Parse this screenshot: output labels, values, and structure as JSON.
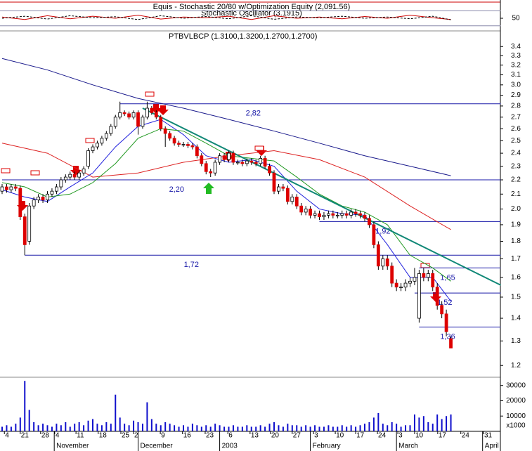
{
  "chart_data": [
    {
      "type": "line",
      "title": "Equis - Stochastic 20/80 w/Optimization Equity (2,091.56)",
      "subtitle": "Stochastic Oscillator (3.1915)",
      "xlim": [
        0,
        110
      ],
      "ylim": [
        0,
        100
      ],
      "yticks": [
        50
      ],
      "levels": [
        20,
        80
      ],
      "series": [
        {
          "color": "#cc0000",
          "style": "solid",
          "x": [
            0,
            5,
            10,
            15,
            20,
            25,
            30,
            35,
            40,
            45,
            50,
            55,
            60,
            65,
            70,
            75,
            80,
            85,
            90,
            95,
            99
          ],
          "values": [
            55,
            45,
            60,
            48,
            58,
            50,
            62,
            47,
            55,
            52,
            58,
            45,
            60,
            50,
            55,
            48,
            57,
            50,
            62,
            52,
            45
          ]
        },
        {
          "color": "#000000",
          "style": "dashed",
          "x": [
            0,
            5,
            10,
            15,
            20,
            25,
            30,
            35,
            40,
            45,
            50,
            55,
            60,
            65,
            70,
            75,
            80,
            85,
            90,
            95,
            99
          ],
          "values": [
            50,
            58,
            47,
            60,
            52,
            56,
            45,
            60,
            50,
            57,
            48,
            60,
            46,
            55,
            52,
            58,
            50,
            55,
            48,
            58,
            44
          ]
        }
      ]
    },
    {
      "type": "candlestick",
      "title": "PTBVLBCP (1.3100,1.3200,1.2700,1.2700)",
      "xlim": [
        0,
        110
      ],
      "ylim": [
        1.16,
        3.57
      ],
      "log": true,
      "yticks": [
        1.2,
        1.3,
        1.4,
        1.5,
        1.6,
        1.7,
        1.8,
        1.9,
        {
          "value": 2,
          "label": "2.0"
        },
        2.1,
        2.2,
        2.3,
        2.4,
        2.5,
        2.6,
        2.7,
        2.8,
        2.9,
        {
          "value": 3,
          "label": "3.0"
        },
        3.1,
        3.2,
        3.3,
        3.4
      ],
      "up_color": "#ffffff",
      "down_color": "#dd0000",
      "open": [
        2.12,
        2.15,
        2.13,
        2.15,
        2.14,
        1.95,
        1.8,
        2.02,
        2.06,
        2.08,
        2.06,
        2.1,
        2.12,
        2.15,
        2.2,
        2.22,
        2.24,
        2.22,
        2.25,
        2.3,
        2.42,
        2.45,
        2.48,
        2.52,
        2.56,
        2.62,
        2.7,
        2.74,
        2.73,
        2.7,
        2.74,
        2.62,
        2.7,
        2.78,
        2.74,
        2.7,
        2.6,
        2.56,
        2.52,
        2.48,
        2.47,
        2.47,
        2.46,
        2.45,
        2.38,
        2.32,
        2.26,
        2.25,
        2.33,
        2.38,
        2.35,
        2.4,
        2.33,
        2.33,
        2.32,
        2.34,
        2.33,
        2.32,
        2.36,
        2.3,
        2.25,
        2.12,
        2.15,
        2.14,
        2.05,
        2.08,
        2.02,
        1.98,
        2.0,
        1.96,
        1.97,
        1.95,
        1.96,
        1.97,
        1.96,
        1.96,
        1.97,
        1.96,
        1.98,
        1.97,
        1.96,
        1.94,
        1.9,
        1.78,
        1.66,
        1.7,
        1.66,
        1.57,
        1.55,
        1.55,
        1.57,
        1.58,
        1.4,
        1.62,
        1.6,
        1.62,
        1.55,
        1.46,
        1.42,
        1.31
      ],
      "high": [
        2.17,
        2.17,
        2.17,
        2.17,
        2.16,
        1.97,
        2.04,
        2.08,
        2.1,
        2.1,
        2.12,
        2.14,
        2.17,
        2.22,
        2.24,
        2.26,
        2.26,
        2.27,
        2.3,
        2.44,
        2.47,
        2.5,
        2.54,
        2.58,
        2.64,
        2.72,
        2.84,
        2.76,
        2.75,
        2.76,
        2.76,
        2.72,
        2.84,
        2.8,
        2.76,
        2.72,
        2.62,
        2.58,
        2.54,
        2.5,
        2.49,
        2.49,
        2.48,
        2.47,
        2.4,
        2.34,
        2.28,
        2.35,
        2.4,
        2.4,
        2.42,
        2.42,
        2.35,
        2.35,
        2.36,
        2.36,
        2.35,
        2.38,
        2.38,
        2.32,
        2.27,
        2.17,
        2.17,
        2.16,
        2.1,
        2.1,
        2.04,
        2.02,
        2.02,
        1.99,
        1.99,
        1.98,
        1.99,
        1.99,
        1.98,
        1.99,
        1.99,
        2.0,
        2.0,
        1.99,
        1.98,
        1.96,
        1.92,
        1.8,
        1.72,
        1.72,
        1.68,
        1.59,
        1.57,
        1.59,
        1.6,
        1.65,
        1.64,
        1.65,
        1.64,
        1.64,
        1.57,
        1.48,
        1.44,
        1.32
      ],
      "low": [
        2.1,
        2.11,
        2.11,
        2.12,
        1.93,
        1.72,
        1.78,
        2.0,
        2.04,
        2.04,
        2.04,
        2.08,
        2.1,
        2.13,
        2.18,
        2.2,
        2.2,
        2.2,
        2.23,
        2.28,
        2.4,
        2.43,
        2.46,
        2.5,
        2.54,
        2.6,
        2.68,
        2.71,
        2.68,
        2.68,
        2.55,
        2.6,
        2.68,
        2.72,
        2.68,
        2.58,
        2.45,
        2.5,
        2.46,
        2.45,
        2.45,
        2.44,
        2.43,
        2.36,
        2.3,
        2.24,
        2.22,
        2.23,
        2.31,
        2.33,
        2.33,
        2.31,
        2.31,
        2.3,
        2.3,
        2.31,
        2.3,
        2.3,
        2.28,
        2.23,
        2.1,
        2.1,
        2.12,
        2.03,
        2.03,
        2.0,
        1.96,
        1.96,
        1.94,
        1.94,
        1.93,
        1.93,
        1.94,
        1.94,
        1.94,
        1.94,
        1.94,
        1.94,
        1.95,
        1.94,
        1.92,
        1.88,
        1.76,
        1.64,
        1.64,
        1.64,
        1.55,
        1.53,
        1.53,
        1.53,
        1.55,
        1.56,
        1.38,
        1.58,
        1.58,
        1.53,
        1.44,
        1.4,
        1.32,
        1.27
      ],
      "close": [
        2.15,
        2.13,
        2.15,
        2.14,
        1.95,
        1.78,
        2.02,
        2.06,
        2.08,
        2.06,
        2.1,
        2.12,
        2.15,
        2.2,
        2.22,
        2.24,
        2.22,
        2.25,
        2.28,
        2.42,
        2.45,
        2.48,
        2.52,
        2.56,
        2.62,
        2.7,
        2.74,
        2.73,
        2.7,
        2.74,
        2.62,
        2.7,
        2.78,
        2.74,
        2.7,
        2.6,
        2.56,
        2.52,
        2.48,
        2.47,
        2.47,
        2.46,
        2.45,
        2.38,
        2.32,
        2.26,
        2.25,
        2.33,
        2.38,
        2.35,
        2.4,
        2.33,
        2.33,
        2.32,
        2.34,
        2.33,
        2.32,
        2.36,
        2.3,
        2.25,
        2.12,
        2.15,
        2.14,
        2.05,
        2.08,
        2.02,
        1.98,
        2.0,
        1.96,
        1.97,
        1.95,
        1.96,
        1.97,
        1.96,
        1.96,
        1.97,
        1.96,
        1.98,
        1.97,
        1.96,
        1.94,
        1.9,
        1.78,
        1.66,
        1.7,
        1.66,
        1.57,
        1.55,
        1.55,
        1.57,
        1.58,
        1.6,
        1.62,
        1.6,
        1.62,
        1.55,
        1.46,
        1.42,
        1.34,
        1.27
      ],
      "lines": [
        {
          "color": "#1a1a8c",
          "width": 1,
          "x": [
            0,
            10,
            20,
            30,
            40,
            50,
            60,
            70,
            80,
            90,
            99
          ],
          "values": [
            3.27,
            3.15,
            3.0,
            2.87,
            2.78,
            2.68,
            2.58,
            2.48,
            2.38,
            2.3,
            2.23
          ]
        },
        {
          "color": "#dd2222",
          "width": 1,
          "x": [
            0,
            10,
            20,
            30,
            40,
            50,
            60,
            70,
            80,
            90,
            99
          ],
          "values": [
            2.48,
            2.4,
            2.22,
            2.25,
            2.33,
            2.38,
            2.42,
            2.35,
            2.22,
            2.02,
            1.87
          ]
        },
        {
          "color": "#2222dd",
          "width": 1,
          "x": [
            0,
            5,
            10,
            15,
            20,
            25,
            30,
            35,
            40,
            45,
            50,
            55,
            60,
            65,
            70,
            75,
            80,
            85,
            90,
            95,
            99
          ],
          "values": [
            2.13,
            2.08,
            2.05,
            2.15,
            2.25,
            2.45,
            2.62,
            2.68,
            2.55,
            2.38,
            2.33,
            2.35,
            2.3,
            2.12,
            2.0,
            1.97,
            1.96,
            1.78,
            1.6,
            1.6,
            1.48
          ]
        },
        {
          "color": "#229922",
          "width": 1,
          "x": [
            0,
            5,
            10,
            15,
            20,
            25,
            30,
            35,
            40,
            45,
            50,
            55,
            60,
            65,
            70,
            75,
            80,
            85,
            90,
            95,
            99
          ],
          "values": [
            2.18,
            2.15,
            2.08,
            2.1,
            2.18,
            2.32,
            2.52,
            2.6,
            2.58,
            2.48,
            2.38,
            2.36,
            2.34,
            2.22,
            2.1,
            2.02,
            1.98,
            1.9,
            1.72,
            1.65,
            1.58
          ]
        },
        {
          "color": "#118877",
          "width": 2,
          "x": [
            31,
            110
          ],
          "values": [
            2.78,
            1.56
          ]
        }
      ],
      "levels": [
        {
          "value": 2.82,
          "label": "2,82",
          "start": 26
        },
        {
          "value": 2.2,
          "label": "2,20",
          "start": 0
        },
        {
          "value": 1.92,
          "label": "1,92",
          "start": 70
        },
        {
          "value": 1.72,
          "label": "1,72",
          "start": 5
        },
        {
          "value": 1.65,
          "label": "1,65",
          "start": 92
        },
        {
          "value": 1.52,
          "label": "1,52",
          "start": 91
        },
        {
          "value": 1.36,
          "label": "1,36",
          "start": 92
        }
      ]
    },
    {
      "type": "bar",
      "xlim": [
        0,
        110
      ],
      "ylim": [
        0,
        34000
      ],
      "yticks": [
        10000,
        20000,
        30000
      ],
      "unit": "x1000",
      "color": "#1010cc",
      "values": [
        3000,
        4000,
        3000,
        5000,
        9000,
        33000,
        14000,
        6000,
        4000,
        5000,
        4000,
        3000,
        5000,
        4000,
        6000,
        3000,
        5000,
        6000,
        4000,
        7000,
        8000,
        5000,
        4000,
        6000,
        5000,
        24000,
        9000,
        5000,
        4000,
        7000,
        6000,
        5000,
        19000,
        8000,
        5000,
        4000,
        6000,
        5000,
        4000,
        3000,
        4000,
        3000,
        5000,
        4000,
        3000,
        4000,
        3000,
        5000,
        4000,
        3000,
        3000,
        4000,
        3000,
        3000,
        4000,
        3000,
        3000,
        4000,
        3000,
        5000,
        6000,
        4000,
        3000,
        5000,
        4000,
        4000,
        3000,
        4000,
        3000,
        4000,
        3000,
        3000,
        4000,
        3000,
        3000,
        4000,
        3000,
        4000,
        3000,
        4000,
        5000,
        6000,
        9000,
        12000,
        5000,
        4000,
        6000,
        5000,
        3000,
        4000,
        4000,
        11000,
        9000,
        10000,
        6000,
        5000,
        11000,
        8000,
        10000,
        11000
      ],
      "xticks": [
        {
          "value": 0.5,
          "label": "4"
        },
        {
          "value": 4,
          "label": "21"
        },
        {
          "value": 8.5,
          "label": "28"
        },
        {
          "value": 11.6,
          "label": "4"
        },
        {
          "value": 16.3,
          "label": "11"
        },
        {
          "value": 21.2,
          "label": "18"
        },
        {
          "value": 26.2,
          "label": "25"
        },
        {
          "value": 29,
          "label": "2"
        },
        {
          "value": 34.9,
          "label": "9"
        },
        {
          "value": 39.8,
          "label": "16"
        },
        {
          "value": 44.8,
          "label": "23"
        },
        {
          "value": 49.8,
          "label": "6"
        },
        {
          "value": 54.7,
          "label": "13"
        },
        {
          "value": 59.2,
          "label": "20"
        },
        {
          "value": 64,
          "label": "27"
        },
        {
          "value": 68.7,
          "label": "3"
        },
        {
          "value": 73.5,
          "label": "10"
        },
        {
          "value": 78,
          "label": "17"
        },
        {
          "value": 82.8,
          "label": "24"
        },
        {
          "value": 87.3,
          "label": "3"
        },
        {
          "value": 91,
          "label": "10"
        },
        {
          "value": 96.1,
          "label": "17"
        },
        {
          "value": 101.2,
          "label": "24"
        },
        {
          "value": 106.2,
          "label": "31"
        }
      ],
      "months": [
        {
          "value": 11.5,
          "label": "November"
        },
        {
          "value": 30,
          "label": "December"
        },
        {
          "value": 48,
          "label": "2003"
        },
        {
          "value": 68,
          "label": "February"
        },
        {
          "value": 87,
          "label": "March"
        },
        {
          "value": 106,
          "label": "April"
        }
      ]
    }
  ]
}
